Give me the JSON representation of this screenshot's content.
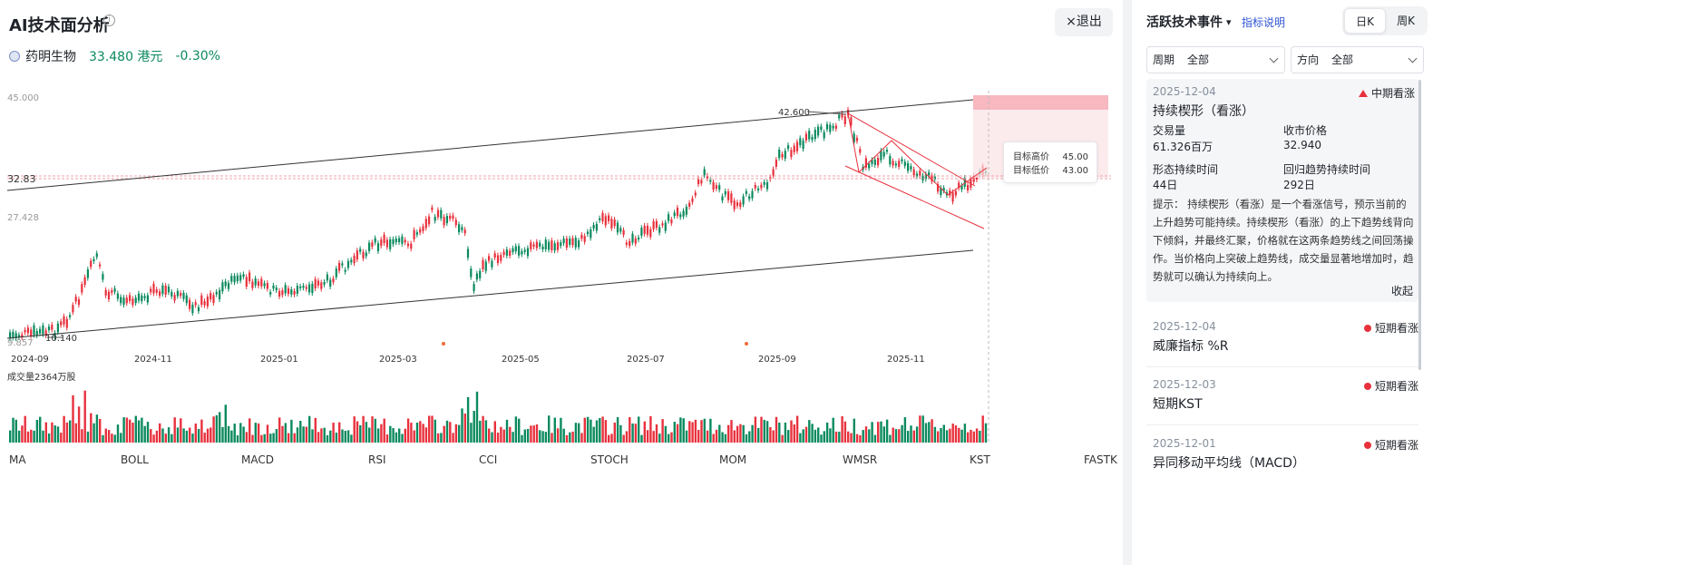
{
  "page": {
    "title": "AI技术面分析",
    "info": "i",
    "exit": "×退出"
  },
  "stock": {
    "name": "药明生物",
    "price": "33.480 港元",
    "change": "-0.30%"
  },
  "chart": {
    "price_ticks": [
      "45.000",
      "32.83",
      "27.428",
      "9.857"
    ],
    "low_label": "10.140",
    "high_label": "42.600",
    "date_ticks": [
      "2024-09",
      "2024-11",
      "2025-01",
      "2025-03",
      "2025-05",
      "2025-07",
      "2025-09",
      "2025-11"
    ],
    "volume_label": "成交量2364万股"
  },
  "chart_data": {
    "type": "candlestick",
    "title": "",
    "price_range": [
      9.857,
      45.0
    ],
    "high": 42.6,
    "low": 10.14,
    "last_price": 32.83,
    "target_high": 45.0,
    "target_low": 43.0,
    "x_range": [
      "2024-09",
      "2025-12"
    ],
    "volume_unit": "万股",
    "last_volume": 2364
  },
  "target": {
    "high_label": "目标高价",
    "high_value": "45.00",
    "low_label": "目标低价",
    "low_value": "43.00"
  },
  "indicators": [
    "MA",
    "BOLL",
    "MACD",
    "RSI",
    "CCI",
    "STOCH",
    "MOM",
    "WMSR",
    "KST",
    "FASTK"
  ],
  "panel": {
    "header": "活跃技术事件",
    "link": "指标说明",
    "day": "日K",
    "week": "周K",
    "period_label": "周期",
    "period_value": "全部",
    "dir_label": "方向",
    "dir_value": "全部"
  },
  "event1": {
    "date": "2025-12-04",
    "tag": "中期看涨",
    "name": "持续楔形（看涨）",
    "vol_label": "交易量",
    "vol": "61.326百万",
    "close_label": "收市价格",
    "close": "32.940",
    "dur_label": "形态持续时间",
    "dur": "44日",
    "ret_label": "回归趋势持续时间",
    "ret": "292日",
    "desc": "提示： 持续楔形（看涨）是一个看涨信号，预示当前的上升趋势可能持续。持续楔形（看涨）的上下趋势线背向下倾斜，并最终汇聚，价格就在这两条趋势线之间回荡操作。当价格向上突破上趋势线，成交量显著地增加时，趋势就可以确认为持续向上。",
    "collapse": "收起"
  },
  "events": [
    {
      "date": "2025-12-04",
      "tag": "短期看涨",
      "name": "威廉指标 %R"
    },
    {
      "date": "2025-12-03",
      "tag": "短期看涨",
      "name": "短期KST"
    },
    {
      "date": "2025-12-01",
      "tag": "短期看涨",
      "name": "异同移动平均线（MACD）"
    }
  ],
  "colors": {
    "up": "#e8313d",
    "down": "#0b8a5e",
    "link": "#2f55d4"
  }
}
